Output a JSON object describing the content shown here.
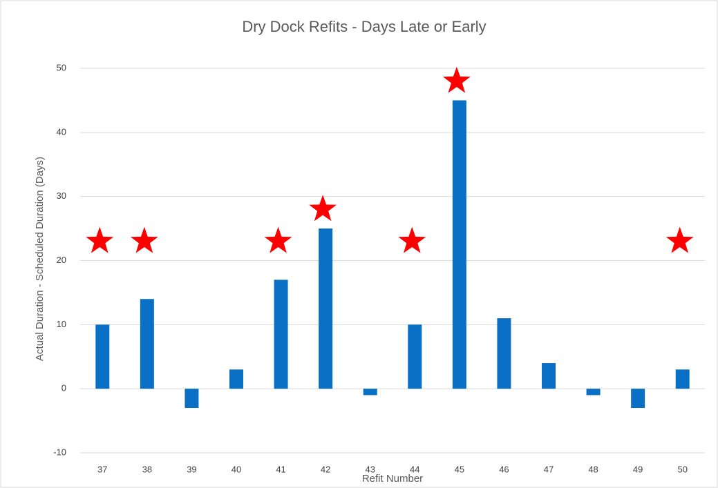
{
  "chart_data": {
    "type": "bar",
    "title": "Dry Dock Refits - Days Late or Early",
    "x_label": "Refit Number",
    "y_label": "Actual Duration - Scheduled Duration (Days)",
    "categories": [
      "37",
      "38",
      "39",
      "40",
      "41",
      "42",
      "43",
      "44",
      "45",
      "46",
      "47",
      "48",
      "49",
      "50"
    ],
    "values": [
      10,
      14,
      -3,
      3,
      17,
      25,
      -1,
      10,
      45,
      11,
      4,
      -1,
      -3,
      3
    ],
    "color": "#0a70c6",
    "star_values": [
      23,
      23,
      null,
      null,
      23,
      28,
      null,
      23,
      48,
      null,
      null,
      null,
      null,
      23
    ],
    "star_color": "#ff0000",
    "ylim": [
      -10,
      50
    ],
    "yticks": [
      -10,
      0,
      10,
      20,
      30,
      40,
      50
    ],
    "grid": true
  }
}
